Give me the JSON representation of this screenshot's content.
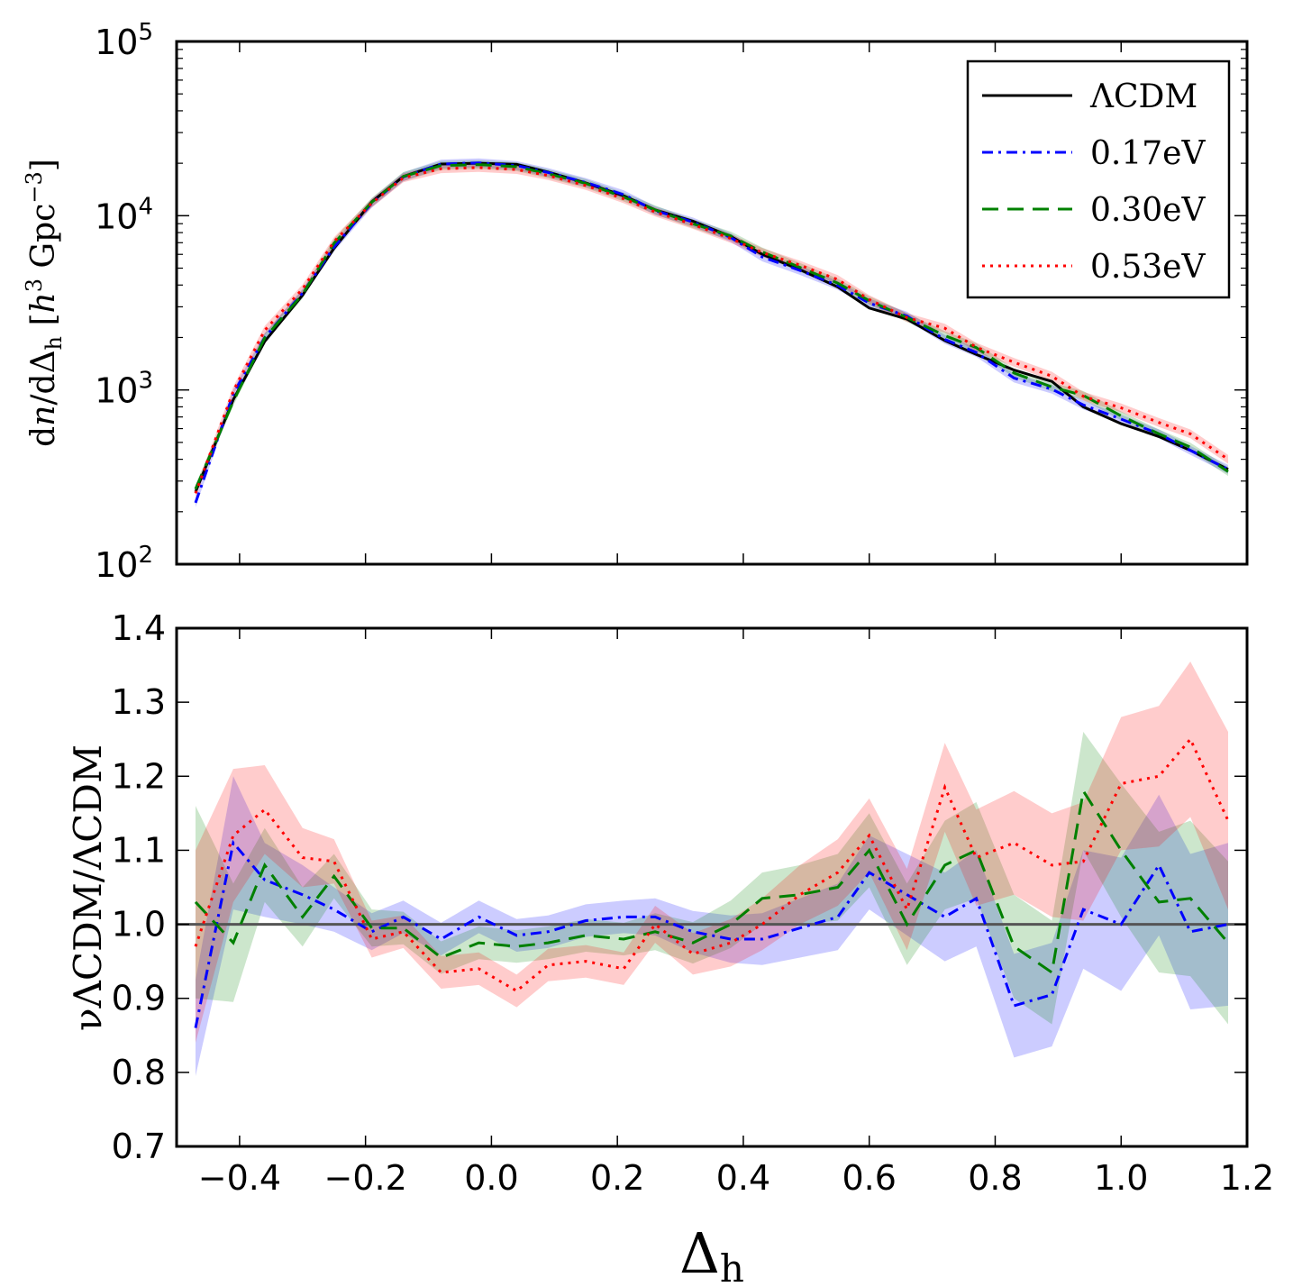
{
  "chart_data": [
    {
      "type": "line",
      "panel": "top",
      "ylabel": "dn/dΔ_h [h³ Gpc⁻³]",
      "ylabel_parts": {
        "main": "d",
        "n": "n",
        "mid": "/dΔ",
        "sub": "h",
        "bracket_open": " [",
        "h": "h",
        "h_sup": "3",
        "gpc": " Gpc",
        "gpc_sup": "−3",
        "bracket_close": "]"
      },
      "yscale": "log",
      "xlim": [
        -0.5,
        1.2
      ],
      "ylim": [
        100,
        100000
      ],
      "yticks": [
        {
          "value": 100,
          "base": "10",
          "exp": "2"
        },
        {
          "value": 1000,
          "base": "10",
          "exp": "3"
        },
        {
          "value": 10000,
          "base": "10",
          "exp": "4"
        },
        {
          "value": 100000,
          "base": "10",
          "exp": "5"
        }
      ],
      "legend_position": "top-right",
      "x": [
        -0.47,
        -0.41,
        -0.36,
        -0.3,
        -0.25,
        -0.19,
        -0.14,
        -0.08,
        -0.02,
        0.04,
        0.09,
        0.15,
        0.21,
        0.26,
        0.32,
        0.38,
        0.43,
        0.49,
        0.55,
        0.6,
        0.66,
        0.72,
        0.77,
        0.83,
        0.89,
        0.94,
        1.0,
        1.06,
        1.11,
        1.17
      ],
      "series": [
        {
          "name": "ΛCDM",
          "color": "#000000",
          "dash": "solid",
          "values": [
            260,
            880,
            1900,
            3500,
            6500,
            12000,
            16800,
            19800,
            20000,
            19700,
            17800,
            15400,
            13000,
            10800,
            9300,
            7600,
            6000,
            4900,
            3900,
            2950,
            2550,
            1920,
            1600,
            1300,
            1120,
            800,
            640,
            540,
            450,
            350
          ]
        },
        {
          "name": "0.17eV",
          "color": "#0000ff",
          "dash": "dashdot",
          "values": [
            225,
            950,
            2000,
            3600,
            6600,
            11800,
            16700,
            19800,
            20100,
            19400,
            17700,
            15500,
            13200,
            10700,
            9200,
            7500,
            5800,
            4850,
            3980,
            3150,
            2650,
            1950,
            1640,
            1170,
            1010,
            820,
            680,
            560,
            450,
            350
          ]
        },
        {
          "name": "0.30eV",
          "color": "#008000",
          "dash": "dashed",
          "values": [
            270,
            860,
            1990,
            3540,
            6950,
            11950,
            16800,
            19400,
            19650,
            19100,
            17400,
            15300,
            12800,
            10800,
            9000,
            7650,
            6200,
            5050,
            4100,
            3250,
            2600,
            2050,
            1750,
            1250,
            1040,
            930,
            710,
            560,
            470,
            340
          ]
        },
        {
          "name": "0.53eV",
          "color": "#ff0000",
          "dash": "dotted",
          "values": [
            255,
            985,
            2200,
            3800,
            7100,
            11800,
            16500,
            18600,
            18900,
            18400,
            17000,
            14900,
            12500,
            10500,
            8900,
            7400,
            6150,
            5200,
            4300,
            3300,
            2600,
            2260,
            1760,
            1440,
            1200,
            920,
            790,
            650,
            560,
            400
          ]
        }
      ]
    },
    {
      "type": "line",
      "panel": "bottom",
      "xlabel": "Δ_h",
      "xlabel_parts": {
        "main": "Δ",
        "sub": "h"
      },
      "ylabel": "νΛCDM/ΛCDM",
      "xlim": [
        -0.5,
        1.2
      ],
      "ylim": [
        0.7,
        1.4
      ],
      "xticks": [
        "−0.4",
        "−0.2",
        "0.0",
        "0.2",
        "0.4",
        "0.6",
        "0.8",
        "1.0",
        "1.2"
      ],
      "yticks": [
        "0.7",
        "0.8",
        "0.9",
        "1.0",
        "1.1",
        "1.2",
        "1.3",
        "1.4"
      ],
      "reference_line": 1.0,
      "x": [
        -0.47,
        -0.41,
        -0.36,
        -0.3,
        -0.25,
        -0.19,
        -0.14,
        -0.08,
        -0.02,
        0.04,
        0.09,
        0.15,
        0.21,
        0.26,
        0.32,
        0.38,
        0.43,
        0.49,
        0.55,
        0.6,
        0.66,
        0.72,
        0.77,
        0.83,
        0.89,
        0.94,
        1.0,
        1.06,
        1.11,
        1.17
      ],
      "series": [
        {
          "name": "0.17eV",
          "color": "#0000ff",
          "dash": "dashdot",
          "values": [
            0.86,
            1.11,
            1.06,
            1.04,
            1.02,
            0.99,
            1.01,
            0.98,
            1.01,
            0.985,
            0.99,
            1.005,
            1.01,
            1.01,
            0.99,
            0.98,
            0.98,
            0.995,
            1.01,
            1.07,
            1.04,
            1.01,
            1.035,
            0.89,
            0.905,
            1.02,
            1.0,
            1.08,
            0.99,
            1.0
          ],
          "band": [
            0.065,
            0.09,
            0.05,
            0.04,
            0.03,
            0.025,
            0.022,
            0.022,
            0.022,
            0.022,
            0.022,
            0.022,
            0.022,
            0.025,
            0.028,
            0.032,
            0.035,
            0.04,
            0.045,
            0.05,
            0.055,
            0.06,
            0.065,
            0.07,
            0.07,
            0.08,
            0.09,
            0.095,
            0.105,
            0.11
          ]
        },
        {
          "name": "0.30eV",
          "color": "#008000",
          "dash": "dashed",
          "values": [
            1.03,
            0.975,
            1.08,
            1.01,
            1.065,
            0.995,
            0.995,
            0.955,
            0.975,
            0.97,
            0.975,
            0.985,
            0.98,
            0.99,
            0.975,
            1.0,
            1.035,
            1.04,
            1.05,
            1.1,
            1.0,
            1.08,
            1.1,
            0.97,
            0.935,
            1.18,
            1.1,
            1.03,
            1.035,
            0.975
          ],
          "band": [
            0.13,
            0.08,
            0.05,
            0.04,
            0.03,
            0.025,
            0.022,
            0.022,
            0.022,
            0.022,
            0.022,
            0.022,
            0.022,
            0.025,
            0.028,
            0.032,
            0.035,
            0.04,
            0.045,
            0.05,
            0.055,
            0.06,
            0.065,
            0.07,
            0.07,
            0.08,
            0.09,
            0.095,
            0.105,
            0.11
          ]
        },
        {
          "name": "0.53eV",
          "color": "#ff0000",
          "dash": "dotted",
          "values": [
            0.97,
            1.12,
            1.155,
            1.09,
            1.085,
            0.98,
            0.99,
            0.935,
            0.94,
            0.91,
            0.945,
            0.95,
            0.94,
            1.0,
            0.96,
            0.975,
            1.0,
            1.04,
            1.07,
            1.12,
            1.02,
            1.185,
            1.09,
            1.11,
            1.08,
            1.085,
            1.19,
            1.2,
            1.25,
            1.14
          ],
          "band": [
            0.13,
            0.09,
            0.06,
            0.04,
            0.03,
            0.025,
            0.022,
            0.022,
            0.022,
            0.022,
            0.022,
            0.022,
            0.022,
            0.025,
            0.028,
            0.032,
            0.035,
            0.04,
            0.045,
            0.05,
            0.055,
            0.06,
            0.065,
            0.07,
            0.07,
            0.08,
            0.09,
            0.095,
            0.105,
            0.12
          ]
        }
      ]
    }
  ]
}
